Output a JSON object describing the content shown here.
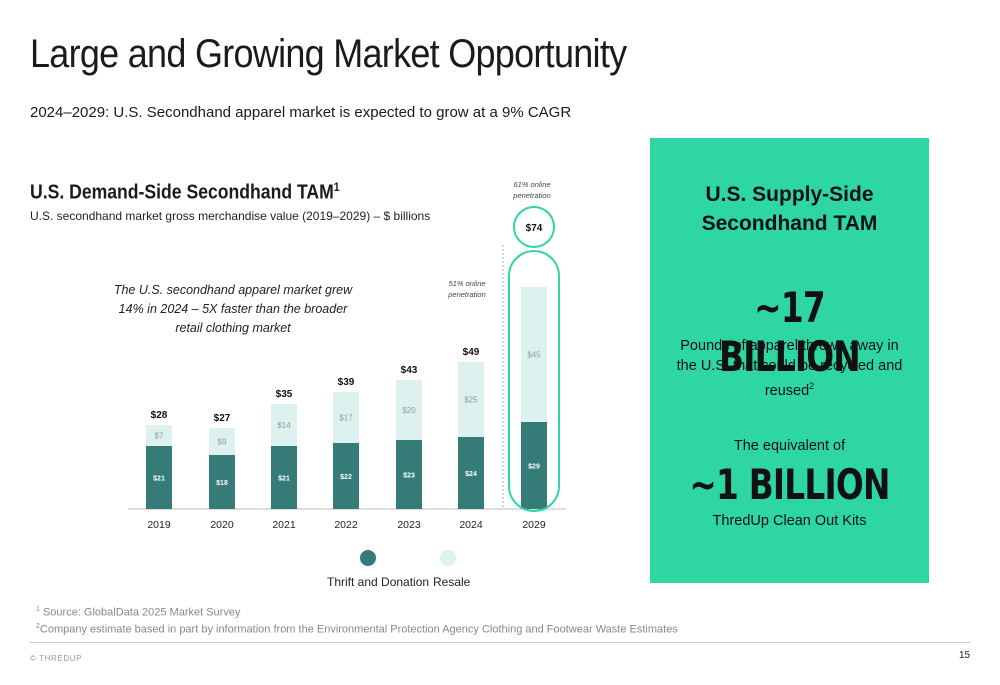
{
  "slide": {
    "title": "Large and Growing Market Opportunity",
    "subtitle": "2024–2029: U.S. Secondhand apparel market is expected to grow at a 9% CAGR",
    "page_number": "15",
    "brand": "© THREDUP"
  },
  "chart_section": {
    "title": "U.S. Demand-Side Secondhand TAM",
    "title_superscript": "1",
    "subtitle": "U.S. secondhand market gross merchandise value (2019–2029) – $ billions",
    "callout": "The U.S. secondhand apparel market grew 14% in 2024 – 5X faster than the broader retail clothing market",
    "annotations": [
      {
        "label": "51% online penetration",
        "category": "2024"
      },
      {
        "label": "61% online penetration",
        "category": "2029"
      }
    ]
  },
  "chart_data": {
    "type": "bar",
    "stacked": true,
    "categories": [
      "2019",
      "2020",
      "2021",
      "2022",
      "2023",
      "2024",
      "2029"
    ],
    "series": [
      {
        "name": "Thrift and Donation",
        "values": [
          21,
          18,
          21,
          22,
          23,
          24,
          29
        ],
        "labels": [
          "$21",
          "$18",
          "$21",
          "$22",
          "$23",
          "$24",
          "$29"
        ],
        "color": "#357c78"
      },
      {
        "name": "Resale",
        "values": [
          7,
          9,
          14,
          17,
          20,
          25,
          45
        ],
        "labels": [
          "$7",
          "$9",
          "$14",
          "$17",
          "$20",
          "$25",
          "$45"
        ],
        "color": "#ddf1ee"
      }
    ],
    "totals": [
      28,
      27,
      35,
      39,
      43,
      49,
      74
    ],
    "total_labels": [
      "$28",
      "$27",
      "$35",
      "$39",
      "$43",
      "$49",
      "$74"
    ],
    "highlighted_category": "2029",
    "highlight_color": "#2ed6a3"
  },
  "legend": [
    {
      "label": "Thrift and Donation",
      "color": "#357c78"
    },
    {
      "label": "Resale",
      "color": "#ddf1ee"
    }
  ],
  "supply_panel": {
    "title_line1": "U.S. Supply-Side",
    "title_line2": "Secondhand TAM",
    "stat1": "~17 BILLION",
    "stat1_desc": "Pounds of apparel thrown away in the U.S. that could be recycled and reused",
    "stat1_sup": "2",
    "equiv_label": "The equivalent of",
    "stat2": "~1 BILLION",
    "stat2_desc": "ThredUp Clean Out Kits",
    "background": "#2ed6a3"
  },
  "footnotes": [
    {
      "sup": "1",
      "text": "Source: GlobalData 2025 Market Survey"
    },
    {
      "sup": "2",
      "text": "Company estimate based in part by information from the Environmental Protection Agency Clothing and Footwear Waste Estimates"
    }
  ]
}
